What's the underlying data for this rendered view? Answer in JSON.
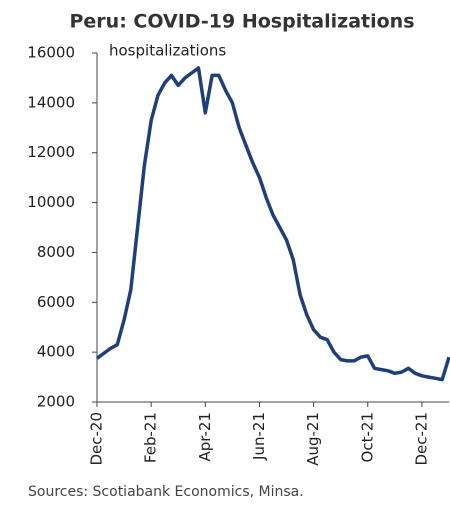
{
  "chart_data": {
    "type": "line",
    "title": "Peru: COVID-19 Hospitalizations",
    "y_label": "hospitalizations",
    "source": "Sources: Scotiabank Economics, Minsa.",
    "categories": [
      "Dec-20",
      null,
      null,
      null,
      null,
      null,
      null,
      null,
      "Feb-21",
      null,
      null,
      null,
      null,
      null,
      null,
      null,
      "Apr-21",
      null,
      null,
      null,
      null,
      null,
      null,
      null,
      "Jun-21",
      null,
      null,
      null,
      null,
      null,
      null,
      null,
      "Aug-21",
      null,
      null,
      null,
      null,
      null,
      null,
      null,
      "Oct-21",
      null,
      null,
      null,
      null,
      null,
      null,
      null,
      "Dec-21",
      null,
      null,
      null,
      null
    ],
    "series": [
      {
        "name": "hospitalizations",
        "color": "#1f3f7a",
        "values": [
          3750,
          3950,
          4150,
          4300,
          5300,
          6500,
          9000,
          11500,
          13300,
          14300,
          14800,
          15100,
          14700,
          15000,
          15200,
          15400,
          13600,
          15100,
          15100,
          14500,
          14000,
          13000,
          12300,
          11600,
          11000,
          10200,
          9500,
          9000,
          8500,
          7700,
          6300,
          5500,
          4900,
          4600,
          4500,
          4000,
          3700,
          3650,
          3650,
          3800,
          3850,
          3350,
          3300,
          3250,
          3150,
          3200,
          3350,
          3150,
          3050,
          3000,
          2950,
          2900,
          3800
        ]
      }
    ],
    "ylim": [
      2000,
      16000
    ],
    "yticks": [
      2000,
      4000,
      6000,
      8000,
      10000,
      12000,
      14000,
      16000
    ]
  }
}
